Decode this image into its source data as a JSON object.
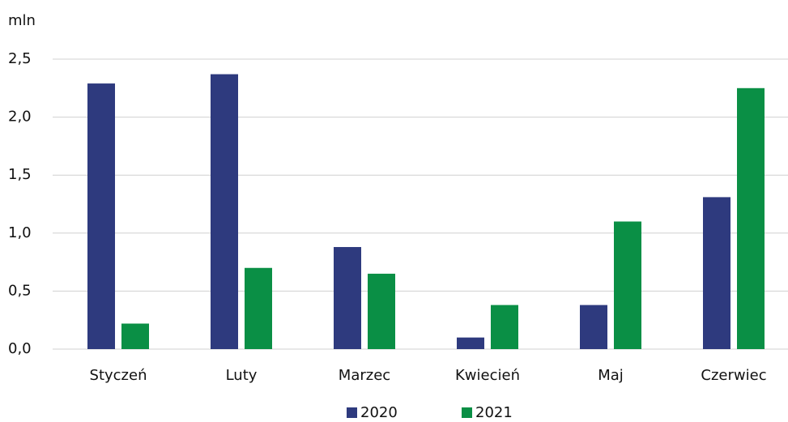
{
  "chart_data": {
    "type": "bar",
    "y_axis_label": "mln",
    "categories": [
      "Styczeń",
      "Luty",
      "Marzec",
      "Kwiecień",
      "Maj",
      "Czerwiec"
    ],
    "series": [
      {
        "name": "2020",
        "color": "#2e3a7e",
        "values": [
          2.29,
          2.37,
          0.88,
          0.1,
          0.38,
          1.31
        ]
      },
      {
        "name": "2021",
        "color": "#0a8f45",
        "values": [
          0.22,
          0.7,
          0.65,
          0.38,
          1.1,
          2.25
        ]
      }
    ],
    "ylim": [
      0,
      2.5
    ],
    "yticks": [
      {
        "value": 0,
        "label": "0,0"
      },
      {
        "value": 0.5,
        "label": "0,5"
      },
      {
        "value": 1,
        "label": "1,0"
      },
      {
        "value": 1.5,
        "label": "1,5"
      },
      {
        "value": 2,
        "label": "2,0"
      },
      {
        "value": 2.5,
        "label": "2,5"
      }
    ],
    "grid": true,
    "legend": "bottom"
  }
}
